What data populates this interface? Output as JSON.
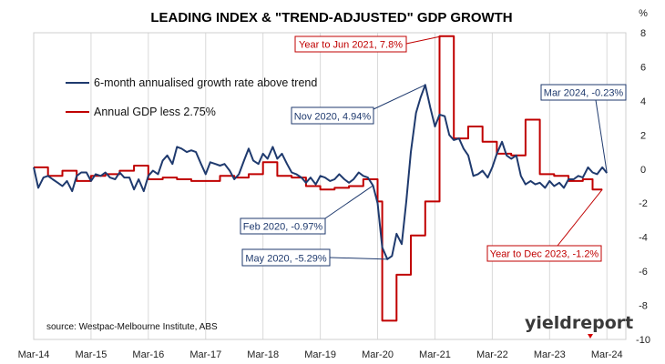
{
  "chart_data": {
    "type": "line",
    "title": "LEADING INDEX & \"TREND-ADJUSTED\" GDP GROWTH",
    "ylabel": "%",
    "ylim": [
      -10,
      8
    ],
    "yticks": [
      8,
      6,
      4,
      2,
      0,
      -2,
      -4,
      -6,
      -8,
      -10
    ],
    "xlim": [
      2014.0,
      2024.33
    ],
    "xticks": [
      {
        "x": 2014.0,
        "label": "Mar-14"
      },
      {
        "x": 2015.0,
        "label": "Mar-15"
      },
      {
        "x": 2016.0,
        "label": "Mar-16"
      },
      {
        "x": 2017.0,
        "label": "Mar-17"
      },
      {
        "x": 2018.0,
        "label": "Mar-18"
      },
      {
        "x": 2019.0,
        "label": "Mar-19"
      },
      {
        "x": 2020.0,
        "label": "Mar-20"
      },
      {
        "x": 2021.0,
        "label": "Mar-21"
      },
      {
        "x": 2022.0,
        "label": "Mar-22"
      },
      {
        "x": 2023.0,
        "label": "Mar-23"
      },
      {
        "x": 2024.0,
        "label": "Mar-24"
      }
    ],
    "grid": "vertical",
    "legend_position": "top-left",
    "source": "source: Westpac-Melbourne Institute, ABS",
    "logo": "yieldreport",
    "series": [
      {
        "name": "6-month annualised growth rate above trend",
        "color": "#1f3a6e",
        "points": [
          [
            2014.0,
            0.1
          ],
          [
            2014.08,
            -1.1
          ],
          [
            2014.17,
            -0.5
          ],
          [
            2014.25,
            -0.4
          ],
          [
            2014.33,
            -0.6
          ],
          [
            2014.42,
            -0.8
          ],
          [
            2014.5,
            -1.0
          ],
          [
            2014.58,
            -0.7
          ],
          [
            2014.67,
            -1.3
          ],
          [
            2014.75,
            -0.4
          ],
          [
            2014.83,
            -0.2
          ],
          [
            2014.92,
            -0.2
          ],
          [
            2015.0,
            -0.7
          ],
          [
            2015.08,
            -0.3
          ],
          [
            2015.17,
            -0.4
          ],
          [
            2015.25,
            -0.2
          ],
          [
            2015.33,
            -0.5
          ],
          [
            2015.42,
            -0.6
          ],
          [
            2015.5,
            -0.2
          ],
          [
            2015.58,
            -0.5
          ],
          [
            2015.67,
            -0.5
          ],
          [
            2015.75,
            -1.2
          ],
          [
            2015.83,
            -0.6
          ],
          [
            2015.92,
            -1.3
          ],
          [
            2016.0,
            -0.4
          ],
          [
            2016.08,
            -0.1
          ],
          [
            2016.17,
            -0.3
          ],
          [
            2016.25,
            0.5
          ],
          [
            2016.33,
            0.8
          ],
          [
            2016.42,
            0.3
          ],
          [
            2016.5,
            1.3
          ],
          [
            2016.58,
            1.2
          ],
          [
            2016.67,
            1.0
          ],
          [
            2016.75,
            1.1
          ],
          [
            2016.83,
            1.0
          ],
          [
            2016.92,
            0.3
          ],
          [
            2017.0,
            -0.3
          ],
          [
            2017.08,
            0.4
          ],
          [
            2017.17,
            0.3
          ],
          [
            2017.25,
            0.2
          ],
          [
            2017.33,
            0.3
          ],
          [
            2017.42,
            -0.1
          ],
          [
            2017.5,
            -0.6
          ],
          [
            2017.58,
            -0.3
          ],
          [
            2017.67,
            0.5
          ],
          [
            2017.75,
            1.2
          ],
          [
            2017.83,
            0.5
          ],
          [
            2017.92,
            0.3
          ],
          [
            2018.0,
            0.9
          ],
          [
            2018.08,
            0.6
          ],
          [
            2018.17,
            1.3
          ],
          [
            2018.25,
            0.6
          ],
          [
            2018.33,
            0.9
          ],
          [
            2018.42,
            0.3
          ],
          [
            2018.5,
            -0.2
          ],
          [
            2018.58,
            -0.3
          ],
          [
            2018.67,
            -0.5
          ],
          [
            2018.75,
            -0.8
          ],
          [
            2018.83,
            -0.5
          ],
          [
            2018.92,
            -0.9
          ],
          [
            2019.0,
            -0.4
          ],
          [
            2019.08,
            -0.5
          ],
          [
            2019.17,
            -0.7
          ],
          [
            2019.25,
            -0.6
          ],
          [
            2019.33,
            -0.3
          ],
          [
            2019.42,
            -0.6
          ],
          [
            2019.5,
            -0.8
          ],
          [
            2019.58,
            -0.6
          ],
          [
            2019.67,
            -0.2
          ],
          [
            2019.75,
            -0.4
          ],
          [
            2019.83,
            -0.5
          ],
          [
            2019.92,
            -0.97
          ],
          [
            2020.0,
            -2.0
          ],
          [
            2020.08,
            -4.6
          ],
          [
            2020.17,
            -5.29
          ],
          [
            2020.25,
            -5.1
          ],
          [
            2020.33,
            -3.8
          ],
          [
            2020.42,
            -4.4
          ],
          [
            2020.5,
            -1.9
          ],
          [
            2020.58,
            1.0
          ],
          [
            2020.67,
            3.3
          ],
          [
            2020.75,
            4.2
          ],
          [
            2020.83,
            4.94
          ],
          [
            2020.92,
            3.6
          ],
          [
            2021.0,
            2.5
          ],
          [
            2021.08,
            3.2
          ],
          [
            2021.17,
            3.1
          ],
          [
            2021.25,
            2.0
          ],
          [
            2021.33,
            1.7
          ],
          [
            2021.42,
            1.8
          ],
          [
            2021.5,
            1.2
          ],
          [
            2021.58,
            0.8
          ],
          [
            2021.67,
            -0.4
          ],
          [
            2021.75,
            -0.3
          ],
          [
            2021.83,
            -0.1
          ],
          [
            2021.92,
            -0.5
          ],
          [
            2022.0,
            0.1
          ],
          [
            2022.08,
            0.9
          ],
          [
            2022.17,
            1.6
          ],
          [
            2022.25,
            0.8
          ],
          [
            2022.33,
            0.6
          ],
          [
            2022.42,
            0.8
          ],
          [
            2022.5,
            -0.4
          ],
          [
            2022.58,
            -0.9
          ],
          [
            2022.67,
            -0.7
          ],
          [
            2022.75,
            -0.9
          ],
          [
            2022.83,
            -0.8
          ],
          [
            2022.92,
            -1.1
          ],
          [
            2023.0,
            -0.7
          ],
          [
            2023.08,
            -1.0
          ],
          [
            2023.17,
            -0.8
          ],
          [
            2023.25,
            -1.1
          ],
          [
            2023.33,
            -0.6
          ],
          [
            2023.42,
            -0.6
          ],
          [
            2023.5,
            -0.4
          ],
          [
            2023.58,
            -0.5
          ],
          [
            2023.67,
            0.1
          ],
          [
            2023.75,
            -0.2
          ],
          [
            2023.83,
            -0.3
          ],
          [
            2023.92,
            0.1
          ],
          [
            2024.0,
            -0.23
          ]
        ]
      },
      {
        "name": "Annual GDP less 2.75%",
        "color": "#c00000",
        "points": [
          [
            2014.0,
            0.1
          ],
          [
            2014.25,
            0.1
          ],
          [
            2014.25,
            -0.4
          ],
          [
            2014.5,
            -0.4
          ],
          [
            2014.5,
            -0.1
          ],
          [
            2014.75,
            -0.1
          ],
          [
            2014.75,
            -0.7
          ],
          [
            2015.0,
            -0.7
          ],
          [
            2015.0,
            -0.4
          ],
          [
            2015.25,
            -0.4
          ],
          [
            2015.25,
            -0.3
          ],
          [
            2015.5,
            -0.3
          ],
          [
            2015.5,
            -0.1
          ],
          [
            2015.75,
            -0.1
          ],
          [
            2015.75,
            0.2
          ],
          [
            2016.0,
            0.2
          ],
          [
            2016.0,
            -0.6
          ],
          [
            2016.25,
            -0.6
          ],
          [
            2016.25,
            -0.5
          ],
          [
            2016.5,
            -0.5
          ],
          [
            2016.5,
            -0.6
          ],
          [
            2016.75,
            -0.6
          ],
          [
            2016.75,
            -0.7
          ],
          [
            2017.0,
            -0.7
          ],
          [
            2017.0,
            -0.7
          ],
          [
            2017.25,
            -0.7
          ],
          [
            2017.25,
            -0.4
          ],
          [
            2017.5,
            -0.4
          ],
          [
            2017.5,
            -0.5
          ],
          [
            2017.75,
            -0.5
          ],
          [
            2017.75,
            -0.3
          ],
          [
            2018.0,
            -0.3
          ],
          [
            2018.0,
            0.4
          ],
          [
            2018.25,
            0.4
          ],
          [
            2018.25,
            -0.4
          ],
          [
            2018.5,
            -0.4
          ],
          [
            2018.5,
            -0.5
          ],
          [
            2018.75,
            -0.5
          ],
          [
            2018.75,
            -1.0
          ],
          [
            2019.0,
            -1.0
          ],
          [
            2019.0,
            -1.2
          ],
          [
            2019.25,
            -1.2
          ],
          [
            2019.25,
            -1.1
          ],
          [
            2019.5,
            -1.1
          ],
          [
            2019.5,
            -1.0
          ],
          [
            2019.75,
            -1.0
          ],
          [
            2019.75,
            -0.6
          ],
          [
            2020.0,
            -0.6
          ],
          [
            2020.0,
            -1.9
          ],
          [
            2020.08,
            -1.9
          ],
          [
            2020.08,
            -8.9
          ],
          [
            2020.33,
            -8.9
          ],
          [
            2020.33,
            -6.2
          ],
          [
            2020.58,
            -6.2
          ],
          [
            2020.58,
            -3.9
          ],
          [
            2020.83,
            -3.9
          ],
          [
            2020.83,
            -1.9
          ],
          [
            2021.08,
            -1.9
          ],
          [
            2021.08,
            7.8
          ],
          [
            2021.33,
            7.8
          ],
          [
            2021.33,
            1.8
          ],
          [
            2021.58,
            1.8
          ],
          [
            2021.58,
            2.5
          ],
          [
            2021.83,
            2.5
          ],
          [
            2021.83,
            1.6
          ],
          [
            2022.08,
            1.6
          ],
          [
            2022.08,
            0.9
          ],
          [
            2022.33,
            0.9
          ],
          [
            2022.33,
            0.8
          ],
          [
            2022.58,
            0.8
          ],
          [
            2022.58,
            2.9
          ],
          [
            2022.83,
            2.9
          ],
          [
            2022.83,
            -0.3
          ],
          [
            2023.08,
            -0.3
          ],
          [
            2023.08,
            -0.4
          ],
          [
            2023.33,
            -0.4
          ],
          [
            2023.33,
            -0.7
          ],
          [
            2023.58,
            -0.7
          ],
          [
            2023.58,
            -0.6
          ],
          [
            2023.75,
            -0.6
          ],
          [
            2023.75,
            -1.2
          ],
          [
            2023.92,
            -1.2
          ]
        ]
      }
    ],
    "annotations": [
      {
        "text": "Year to Jun 2021, 7.8%",
        "series": 1,
        "color": "#c00000",
        "point": [
          2021.12,
          7.8
        ]
      },
      {
        "text": "Nov 2020, 4.94%",
        "series": 0,
        "color": "#1f3a6e",
        "point": [
          2020.83,
          4.94
        ]
      },
      {
        "text": "Mar 2024, -0.23%",
        "series": 0,
        "color": "#1f3a6e",
        "point": [
          2024.0,
          -0.23
        ]
      },
      {
        "text": "Feb 2020, -0.97%",
        "series": 0,
        "color": "#1f3a6e",
        "point": [
          2019.92,
          -0.97
        ]
      },
      {
        "text": "May 2020, -5.29%",
        "series": 0,
        "color": "#1f3a6e",
        "point": [
          2020.17,
          -5.29
        ]
      },
      {
        "text": "Year to Dec 2023, -1.2%",
        "series": 1,
        "color": "#c00000",
        "point": [
          2023.92,
          -1.2
        ]
      }
    ]
  }
}
